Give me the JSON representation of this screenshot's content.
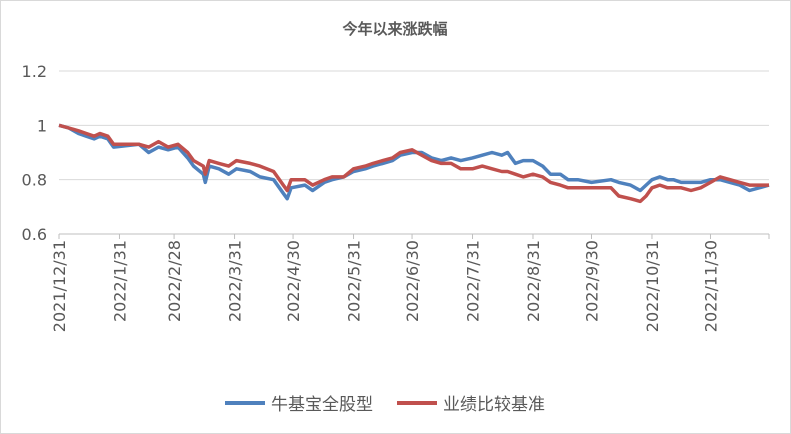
{
  "chart_data": {
    "type": "line",
    "title": "今年以来涨跌幅",
    "xlabel": "",
    "ylabel": "",
    "ylim": [
      0.6,
      1.2
    ],
    "yticks": [
      "0.6",
      "0.8",
      "1",
      "1.2"
    ],
    "xticks": [
      "2021/12/31",
      "2022/1/31",
      "2022/2/28",
      "2022/3/31",
      "2022/4/30",
      "2022/5/31",
      "2022/6/30",
      "2022/7/31",
      "2022/8/31",
      "2022/9/30",
      "2022/10/31",
      "2022/11/30"
    ],
    "x_range": [
      "2021-12-31",
      "2022-12-30"
    ],
    "grid": true,
    "legend_position": "bottom",
    "colors": {
      "fund": "#4f81bd",
      "benchmark": "#c0504d",
      "grid": "#d9d9d9",
      "axis": "#bfbfbf",
      "text": "#595959"
    },
    "series": [
      {
        "name": "牛基宝全股型",
        "color": "#4f81bd",
        "points": [
          [
            "2021-12-31",
            1.0
          ],
          [
            "2022-01-05",
            0.99
          ],
          [
            "2022-01-10",
            0.97
          ],
          [
            "2022-01-14",
            0.96
          ],
          [
            "2022-01-18",
            0.95
          ],
          [
            "2022-01-21",
            0.96
          ],
          [
            "2022-01-25",
            0.95
          ],
          [
            "2022-01-28",
            0.92
          ],
          [
            "2022-02-10",
            0.93
          ],
          [
            "2022-02-15",
            0.9
          ],
          [
            "2022-02-20",
            0.92
          ],
          [
            "2022-02-25",
            0.91
          ],
          [
            "2022-03-02",
            0.92
          ],
          [
            "2022-03-07",
            0.88
          ],
          [
            "2022-03-10",
            0.85
          ],
          [
            "2022-03-15",
            0.82
          ],
          [
            "2022-03-16",
            0.79
          ],
          [
            "2022-03-18",
            0.85
          ],
          [
            "2022-03-23",
            0.84
          ],
          [
            "2022-03-28",
            0.82
          ],
          [
            "2022-04-01",
            0.84
          ],
          [
            "2022-04-08",
            0.83
          ],
          [
            "2022-04-13",
            0.81
          ],
          [
            "2022-04-20",
            0.8
          ],
          [
            "2022-04-25",
            0.75
          ],
          [
            "2022-04-27",
            0.73
          ],
          [
            "2022-04-29",
            0.77
          ],
          [
            "2022-05-06",
            0.78
          ],
          [
            "2022-05-10",
            0.76
          ],
          [
            "2022-05-16",
            0.79
          ],
          [
            "2022-05-20",
            0.8
          ],
          [
            "2022-05-26",
            0.81
          ],
          [
            "2022-05-31",
            0.83
          ],
          [
            "2022-06-06",
            0.84
          ],
          [
            "2022-06-10",
            0.85
          ],
          [
            "2022-06-15",
            0.86
          ],
          [
            "2022-06-20",
            0.87
          ],
          [
            "2022-06-24",
            0.89
          ],
          [
            "2022-06-30",
            0.9
          ],
          [
            "2022-07-05",
            0.9
          ],
          [
            "2022-07-10",
            0.88
          ],
          [
            "2022-07-15",
            0.87
          ],
          [
            "2022-07-20",
            0.88
          ],
          [
            "2022-07-25",
            0.87
          ],
          [
            "2022-07-31",
            0.88
          ],
          [
            "2022-08-05",
            0.89
          ],
          [
            "2022-08-10",
            0.9
          ],
          [
            "2022-08-15",
            0.89
          ],
          [
            "2022-08-18",
            0.9
          ],
          [
            "2022-08-22",
            0.86
          ],
          [
            "2022-08-26",
            0.87
          ],
          [
            "2022-08-31",
            0.87
          ],
          [
            "2022-09-05",
            0.85
          ],
          [
            "2022-09-09",
            0.82
          ],
          [
            "2022-09-14",
            0.82
          ],
          [
            "2022-09-18",
            0.8
          ],
          [
            "2022-09-23",
            0.8
          ],
          [
            "2022-09-30",
            0.79
          ],
          [
            "2022-10-10",
            0.8
          ],
          [
            "2022-10-14",
            0.79
          ],
          [
            "2022-10-20",
            0.78
          ],
          [
            "2022-10-25",
            0.76
          ],
          [
            "2022-10-28",
            0.78
          ],
          [
            "2022-10-31",
            0.8
          ],
          [
            "2022-11-04",
            0.81
          ],
          [
            "2022-11-08",
            0.8
          ],
          [
            "2022-11-11",
            0.8
          ],
          [
            "2022-11-15",
            0.79
          ],
          [
            "2022-11-20",
            0.79
          ],
          [
            "2022-11-25",
            0.79
          ],
          [
            "2022-11-30",
            0.8
          ],
          [
            "2022-12-05",
            0.8
          ],
          [
            "2022-12-10",
            0.79
          ],
          [
            "2022-12-15",
            0.78
          ],
          [
            "2022-12-20",
            0.76
          ],
          [
            "2022-12-25",
            0.77
          ],
          [
            "2022-12-30",
            0.78
          ]
        ]
      },
      {
        "name": "业绩比较基准",
        "color": "#c0504d",
        "points": [
          [
            "2021-12-31",
            1.0
          ],
          [
            "2022-01-05",
            0.99
          ],
          [
            "2022-01-10",
            0.98
          ],
          [
            "2022-01-14",
            0.97
          ],
          [
            "2022-01-18",
            0.96
          ],
          [
            "2022-01-21",
            0.97
          ],
          [
            "2022-01-25",
            0.96
          ],
          [
            "2022-01-28",
            0.93
          ],
          [
            "2022-02-10",
            0.93
          ],
          [
            "2022-02-15",
            0.92
          ],
          [
            "2022-02-20",
            0.94
          ],
          [
            "2022-02-25",
            0.92
          ],
          [
            "2022-03-02",
            0.93
          ],
          [
            "2022-03-07",
            0.9
          ],
          [
            "2022-03-10",
            0.87
          ],
          [
            "2022-03-15",
            0.85
          ],
          [
            "2022-03-16",
            0.82
          ],
          [
            "2022-03-18",
            0.87
          ],
          [
            "2022-03-23",
            0.86
          ],
          [
            "2022-03-28",
            0.85
          ],
          [
            "2022-04-01",
            0.87
          ],
          [
            "2022-04-08",
            0.86
          ],
          [
            "2022-04-13",
            0.85
          ],
          [
            "2022-04-20",
            0.83
          ],
          [
            "2022-04-25",
            0.78
          ],
          [
            "2022-04-27",
            0.76
          ],
          [
            "2022-04-29",
            0.8
          ],
          [
            "2022-05-06",
            0.8
          ],
          [
            "2022-05-10",
            0.78
          ],
          [
            "2022-05-16",
            0.8
          ],
          [
            "2022-05-20",
            0.81
          ],
          [
            "2022-05-26",
            0.81
          ],
          [
            "2022-05-31",
            0.84
          ],
          [
            "2022-06-06",
            0.85
          ],
          [
            "2022-06-10",
            0.86
          ],
          [
            "2022-06-15",
            0.87
          ],
          [
            "2022-06-20",
            0.88
          ],
          [
            "2022-06-24",
            0.9
          ],
          [
            "2022-06-30",
            0.91
          ],
          [
            "2022-07-05",
            0.89
          ],
          [
            "2022-07-10",
            0.87
          ],
          [
            "2022-07-15",
            0.86
          ],
          [
            "2022-07-20",
            0.86
          ],
          [
            "2022-07-25",
            0.84
          ],
          [
            "2022-07-31",
            0.84
          ],
          [
            "2022-08-05",
            0.85
          ],
          [
            "2022-08-10",
            0.84
          ],
          [
            "2022-08-15",
            0.83
          ],
          [
            "2022-08-18",
            0.83
          ],
          [
            "2022-08-22",
            0.82
          ],
          [
            "2022-08-26",
            0.81
          ],
          [
            "2022-08-31",
            0.82
          ],
          [
            "2022-09-05",
            0.81
          ],
          [
            "2022-09-09",
            0.79
          ],
          [
            "2022-09-14",
            0.78
          ],
          [
            "2022-09-18",
            0.77
          ],
          [
            "2022-09-23",
            0.77
          ],
          [
            "2022-09-30",
            0.77
          ],
          [
            "2022-10-10",
            0.77
          ],
          [
            "2022-10-14",
            0.74
          ],
          [
            "2022-10-20",
            0.73
          ],
          [
            "2022-10-25",
            0.72
          ],
          [
            "2022-10-28",
            0.74
          ],
          [
            "2022-10-31",
            0.77
          ],
          [
            "2022-11-04",
            0.78
          ],
          [
            "2022-11-08",
            0.77
          ],
          [
            "2022-11-11",
            0.77
          ],
          [
            "2022-11-15",
            0.77
          ],
          [
            "2022-11-20",
            0.76
          ],
          [
            "2022-11-25",
            0.77
          ],
          [
            "2022-11-30",
            0.79
          ],
          [
            "2022-12-05",
            0.81
          ],
          [
            "2022-12-10",
            0.8
          ],
          [
            "2022-12-15",
            0.79
          ],
          [
            "2022-12-20",
            0.78
          ],
          [
            "2022-12-25",
            0.78
          ],
          [
            "2022-12-30",
            0.78
          ]
        ]
      }
    ]
  }
}
